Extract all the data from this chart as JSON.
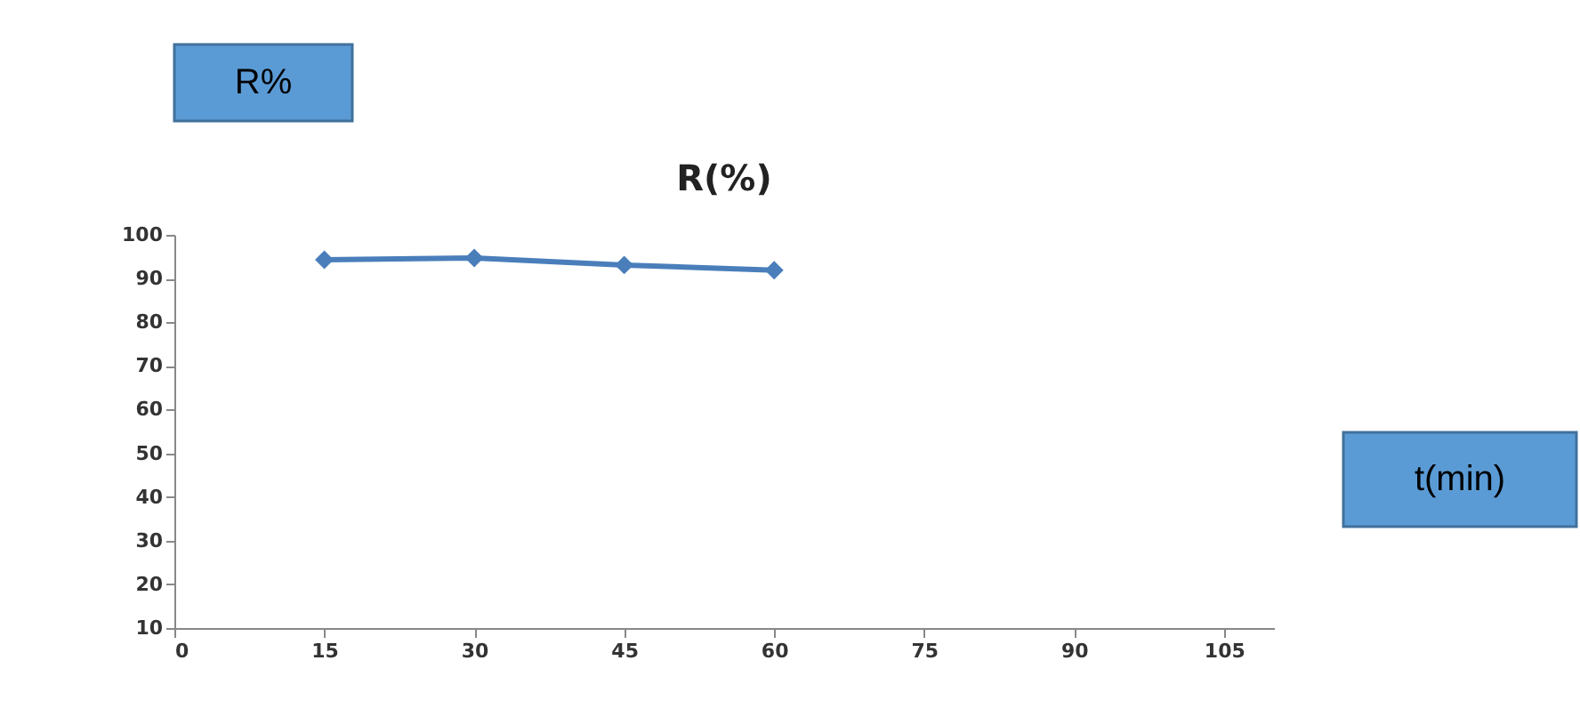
{
  "chart_data": {
    "type": "line",
    "title": "R(%)",
    "xlabel": "t(min)",
    "ylabel": "R%",
    "x": [
      15,
      30,
      45,
      60
    ],
    "series": [
      {
        "color": "#4a7ebb",
        "values": [
          94.3,
          94.7,
          93.1,
          91.9
        ]
      }
    ],
    "xlim": [
      0,
      110
    ],
    "xticks": [
      0,
      15,
      30,
      45,
      60,
      75,
      90,
      105
    ],
    "ylim": [
      10,
      100
    ],
    "yticks": [
      10,
      20,
      30,
      40,
      50,
      60,
      70,
      80,
      90,
      100
    ],
    "grid": false,
    "legend": false,
    "marker": "diamond",
    "line_style": "solid"
  }
}
